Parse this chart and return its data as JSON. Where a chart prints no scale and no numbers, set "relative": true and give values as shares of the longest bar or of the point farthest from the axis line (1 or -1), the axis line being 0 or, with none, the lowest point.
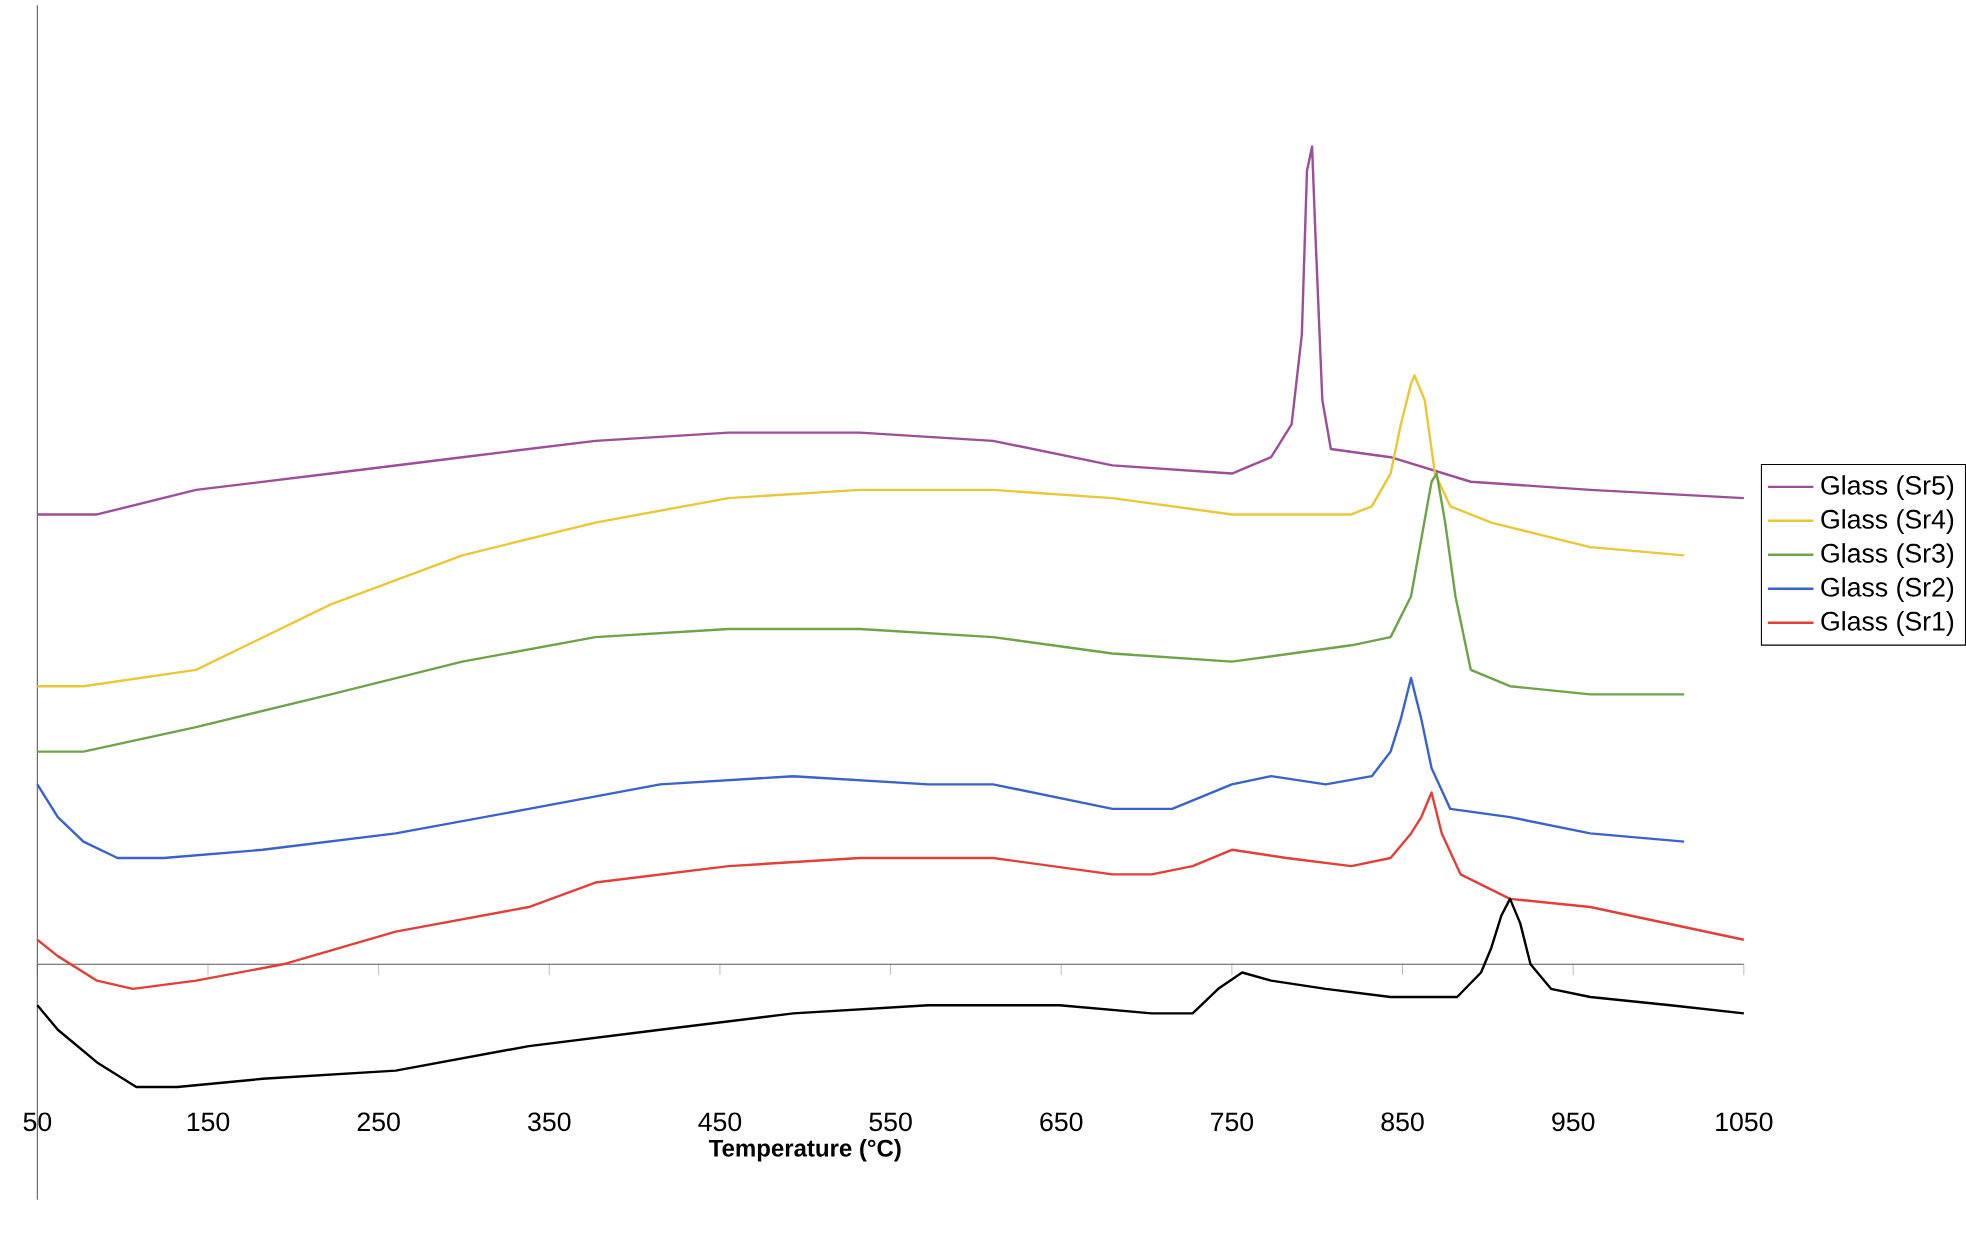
{
  "chart_data": {
    "type": "line",
    "relative": true,
    "xlabel": "**Temperature (°C)**",
    "xlim": [
      50,
      1050
    ],
    "xticks": [
      50,
      150,
      250,
      350,
      450,
      550,
      650,
      750,
      850,
      950,
      1050
    ],
    "legend": "right",
    "series": [
      {
        "name": "Glass (Sr5)",
        "color": "#9b4f96",
        "x": [
          50,
          85,
          143,
          222,
          299,
          377,
          455,
          532,
          610,
          680,
          750,
          773,
          785,
          791,
          794,
          797,
          799,
          803,
          808,
          843,
          890,
          960,
          1050
        ],
        "values": [
          0.55,
          0.55,
          0.58,
          0.6,
          0.62,
          0.64,
          0.65,
          0.65,
          0.64,
          0.61,
          0.6,
          0.62,
          0.66,
          0.77,
          0.97,
          1,
          0.89,
          0.69,
          0.63,
          0.62,
          0.59,
          0.58,
          0.57
        ]
      },
      {
        "name": "Glass (Sr4)",
        "color": "#e8c838",
        "x": [
          50,
          77,
          143,
          222,
          299,
          377,
          455,
          532,
          610,
          680,
          750,
          820,
          832,
          843,
          849,
          855,
          857,
          863,
          869,
          878,
          902,
          960,
          1015
        ],
        "values": [
          0.34,
          0.34,
          0.36,
          0.44,
          0.5,
          0.54,
          0.57,
          0.58,
          0.58,
          0.57,
          0.55,
          0.55,
          0.56,
          0.6,
          0.66,
          0.71,
          0.72,
          0.69,
          0.6,
          0.56,
          0.54,
          0.51,
          0.5
        ]
      },
      {
        "name": "Glass (Sr3)",
        "color": "#70a24a",
        "x": [
          50,
          77,
          143,
          222,
          299,
          377,
          455,
          532,
          610,
          680,
          750,
          820,
          843,
          855,
          861,
          867,
          870,
          875,
          881,
          890,
          913,
          960,
          1015
        ],
        "values": [
          0.26,
          0.26,
          0.29,
          0.33,
          0.37,
          0.4,
          0.41,
          0.41,
          0.4,
          0.38,
          0.37,
          0.39,
          0.4,
          0.45,
          0.52,
          0.59,
          0.6,
          0.54,
          0.45,
          0.36,
          0.34,
          0.33,
          0.33
        ]
      },
      {
        "name": "Glass (Sr2)",
        "color": "#3a62c8",
        "x": [
          50,
          62,
          77,
          97,
          124,
          182,
          260,
          338,
          415,
          493,
          572,
          610,
          680,
          715,
          750,
          773,
          805,
          832,
          843,
          849,
          855,
          861,
          867,
          878,
          913,
          960,
          1015
        ],
        "values": [
          0.22,
          0.18,
          0.15,
          0.13,
          0.13,
          0.14,
          0.16,
          0.19,
          0.22,
          0.23,
          0.22,
          0.22,
          0.19,
          0.19,
          0.22,
          0.23,
          0.22,
          0.23,
          0.26,
          0.3,
          0.35,
          0.3,
          0.24,
          0.19,
          0.18,
          0.16,
          0.15
        ]
      },
      {
        "name": "Glass (Sr1)",
        "color": "#e0403a",
        "x": [
          50,
          62,
          85,
          106,
          143,
          194,
          260,
          338,
          377,
          455,
          532,
          610,
          680,
          703,
          727,
          750,
          782,
          820,
          843,
          855,
          861,
          867,
          873,
          884,
          913,
          960,
          1050
        ],
        "values": [
          0.03,
          0.01,
          -0.02,
          -0.03,
          -0.02,
          0.0,
          0.04,
          0.07,
          0.1,
          0.12,
          0.13,
          0.13,
          0.11,
          0.11,
          0.12,
          0.14,
          0.13,
          0.12,
          0.13,
          0.16,
          0.18,
          0.21,
          0.16,
          0.11,
          0.08,
          0.07,
          0.03
        ]
      },
      {
        "color": "#000000",
        "x": [
          50,
          62,
          85,
          108,
          132,
          182,
          260,
          338,
          415,
          493,
          572,
          610,
          649,
          703,
          727,
          742,
          756,
          773,
          805,
          843,
          882,
          896,
          902,
          908,
          913,
          919,
          925,
          937,
          960,
          1007,
          1050
        ],
        "values": [
          -0.05,
          -0.08,
          -0.12,
          -0.15,
          -0.15,
          -0.14,
          -0.13,
          -0.1,
          -0.08,
          -0.06,
          -0.05,
          -0.05,
          -0.05,
          -0.06,
          -0.06,
          -0.03,
          -0.01,
          -0.02,
          -0.03,
          -0.04,
          -0.04,
          -0.01,
          0.02,
          0.06,
          0.08,
          0.05,
          0.0,
          -0.03,
          -0.04,
          -0.05,
          -0.06
        ]
      }
    ]
  }
}
